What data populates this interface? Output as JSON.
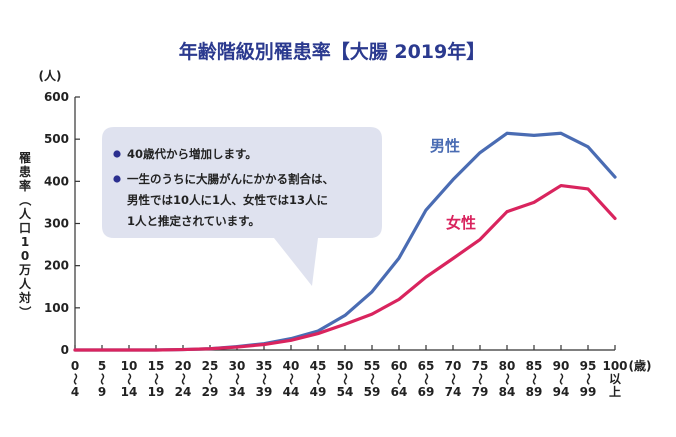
{
  "chart_data": {
    "type": "line",
    "title": "年齢階級別罹患率【大腸 2019年】",
    "ylabel": "罹患率（人口10万人対）",
    "y_unit": "(人)",
    "x_unit": "(歳)",
    "ylim": [
      0,
      600
    ],
    "yticks": [
      "0",
      "100",
      "200",
      "300",
      "400",
      "500",
      "600"
    ],
    "categories": [
      [
        "0",
        "〜",
        "4"
      ],
      [
        "5",
        "〜",
        "9"
      ],
      [
        "10",
        "〜",
        "14"
      ],
      [
        "15",
        "〜",
        "19"
      ],
      [
        "20",
        "〜",
        "24"
      ],
      [
        "25",
        "〜",
        "29"
      ],
      [
        "30",
        "〜",
        "34"
      ],
      [
        "35",
        "〜",
        "39"
      ],
      [
        "40",
        "〜",
        "44"
      ],
      [
        "45",
        "〜",
        "49"
      ],
      [
        "50",
        "〜",
        "54"
      ],
      [
        "55",
        "〜",
        "59"
      ],
      [
        "60",
        "〜",
        "64"
      ],
      [
        "65",
        "〜",
        "69"
      ],
      [
        "70",
        "〜",
        "74"
      ],
      [
        "75",
        "〜",
        "79"
      ],
      [
        "80",
        "〜",
        "84"
      ],
      [
        "85",
        "〜",
        "89"
      ],
      [
        "90",
        "〜",
        "94"
      ],
      [
        "95",
        "〜",
        "99"
      ],
      [
        "100",
        "以",
        "上"
      ]
    ],
    "series": [
      {
        "name": "男性",
        "color": "#4a6cb3",
        "values": [
          0,
          0,
          0,
          0,
          1,
          3,
          8,
          15,
          27,
          45,
          82,
          138,
          218,
          332,
          404,
          468,
          514,
          509,
          514,
          482,
          410
        ]
      },
      {
        "name": "女性",
        "color": "#d9245e",
        "values": [
          0,
          0,
          0,
          0,
          1,
          3,
          7,
          13,
          23,
          39,
          61,
          85,
          120,
          173,
          217,
          262,
          328,
          350,
          390,
          382,
          312
        ]
      }
    ],
    "grid": false,
    "annotation": {
      "bullets": [
        [
          "40歳代から増加します。"
        ],
        [
          "一生のうちに大腸がんにかかる割合は、",
          "男性では10人に1人、女性では13人に",
          "1人と推定されています。"
        ]
      ],
      "bullet_color": "#2b2f8f",
      "bubble_color": "#dfe2ef"
    }
  }
}
